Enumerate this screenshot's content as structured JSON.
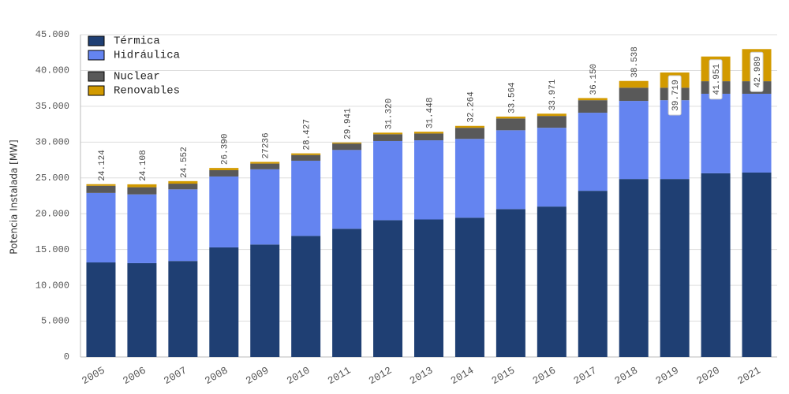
{
  "chart_data": {
    "type": "stacked-bar",
    "y_label": "Potencia Instalada [MW]",
    "categories": [
      "2005",
      "2006",
      "2007",
      "2008",
      "2009",
      "2010",
      "2011",
      "2012",
      "2013",
      "2014",
      "2015",
      "2016",
      "2017",
      "2018",
      "2019",
      "2020",
      "2021"
    ],
    "series": [
      {
        "name": "Térmica",
        "color": "#1f3f73",
        "values": [
          13200,
          13100,
          13400,
          15300,
          15700,
          16900,
          17900,
          19100,
          19200,
          19450,
          20650,
          21000,
          23200,
          24850,
          24850,
          25650,
          25750
        ]
      },
      {
        "name": "Hidráulica",
        "color": "#6484f0",
        "values": [
          9700,
          9600,
          10000,
          9900,
          10500,
          10500,
          11000,
          11050,
          11050,
          11000,
          11000,
          11000,
          10900,
          10900,
          11000,
          11100,
          11000
        ]
      },
      {
        "name": "Nuclear",
        "color": "#595959",
        "values": [
          1000,
          1000,
          800,
          880,
          800,
          800,
          900,
          950,
          950,
          1550,
          1650,
          1650,
          1750,
          1850,
          1750,
          1750,
          1750
        ]
      },
      {
        "name": "Renovables",
        "color": "#d29a00",
        "values": [
          224,
          408,
          352,
          310,
          236,
          227,
          141,
          220,
          248,
          264,
          264,
          321,
          300,
          938,
          2119,
          3451,
          4489
        ]
      }
    ],
    "totals": {
      "values": [
        24124,
        24108,
        24552,
        26390,
        27236,
        28427,
        29941,
        31320,
        31448,
        32264,
        33564,
        33971,
        36150,
        38538,
        39719,
        41951,
        42989
      ],
      "value_labels": [
        "24.124",
        "24.108",
        "24.552",
        "26.390",
        "27236",
        "28.427",
        "29.941",
        "31.320",
        "31.448",
        "32.264",
        "33.564",
        "33.971",
        "36.150",
        "38.538",
        "39.719",
        "41.951",
        "42.989"
      ]
    },
    "ylim": [
      0,
      45000
    ],
    "yticks": [
      0,
      {
        "value": 5000,
        "label": "5.000"
      },
      {
        "value": 10000,
        "label": "10.000"
      },
      {
        "value": 15000,
        "label": "15.000"
      },
      {
        "value": 20000,
        "label": "20.000"
      },
      {
        "value": 25000,
        "label": "25.000"
      },
      {
        "value": 30000,
        "label": "30.000"
      },
      {
        "value": 35000,
        "label": "35.000"
      },
      {
        "value": 40000,
        "label": "40.000"
      },
      {
        "value": 45000,
        "label": "45.000"
      }
    ],
    "grid": true
  }
}
